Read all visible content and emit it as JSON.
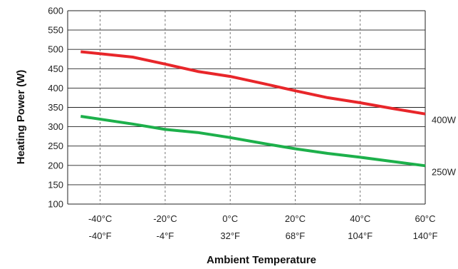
{
  "chart_data": {
    "type": "line",
    "title": "",
    "xlabel": "Ambient Temperature",
    "ylabel": "Heating Power (W)",
    "ylim": [
      100,
      600
    ],
    "xlim": [
      -50,
      60
    ],
    "grid": "horizontal",
    "y_ticks": [
      100,
      150,
      200,
      250,
      300,
      350,
      400,
      450,
      500,
      550,
      600
    ],
    "x_ticks": [
      {
        "value": -40,
        "celsius": "-40°C",
        "fahrenheit": "-40°F"
      },
      {
        "value": -20,
        "celsius": "-20°C",
        "fahrenheit": "-4°F"
      },
      {
        "value": 0,
        "celsius": "0°C",
        "fahrenheit": "32°F"
      },
      {
        "value": 20,
        "celsius": "20°C",
        "fahrenheit": "68°F"
      },
      {
        "value": 40,
        "celsius": "40°C",
        "fahrenheit": "104°F"
      },
      {
        "value": 60,
        "celsius": "60°C",
        "fahrenheit": "140°F"
      }
    ],
    "series": [
      {
        "name": "400W",
        "color": "#e8262a",
        "x": [
          -46,
          -30,
          -20,
          -10,
          0,
          10,
          20,
          30,
          40,
          50,
          60
        ],
        "values": [
          494,
          480,
          462,
          443,
          430,
          412,
          393,
          375,
          362,
          347,
          333
        ]
      },
      {
        "name": "250W",
        "color": "#1db04b",
        "x": [
          -46,
          -30,
          -20,
          -10,
          0,
          10,
          20,
          30,
          40,
          50,
          60
        ],
        "values": [
          327,
          307,
          293,
          285,
          272,
          257,
          243,
          231,
          221,
          210,
          199
        ]
      }
    ]
  }
}
